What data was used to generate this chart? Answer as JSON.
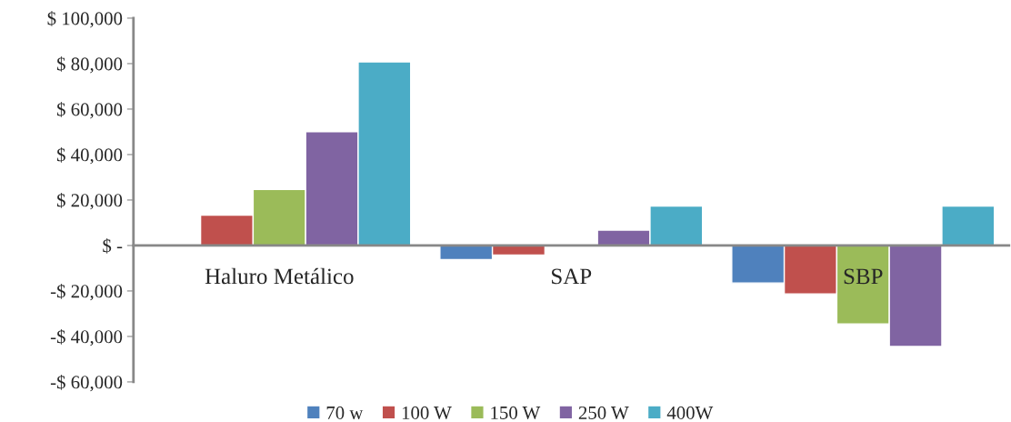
{
  "chart_data": {
    "type": "bar",
    "categories": [
      "Haluro Metálico",
      "SAP",
      "SBP"
    ],
    "series": [
      {
        "name": "70 w",
        "color": "#4f81bd",
        "values": [
          null,
          -6200,
          -16500
        ]
      },
      {
        "name": "100 W",
        "color": "#c0504d",
        "values": [
          13400,
          -4200,
          -21300
        ]
      },
      {
        "name": "150 W",
        "color": "#9bbb59",
        "values": [
          24700,
          null,
          -34500
        ]
      },
      {
        "name": "250 W",
        "color": "#8064a2",
        "values": [
          50100,
          6800,
          -44400
        ]
      },
      {
        "name": "400W",
        "color": "#4bacc6",
        "values": [
          80800,
          17400,
          17400
        ]
      }
    ],
    "ylim": [
      -60000,
      100000
    ],
    "yticks": [
      {
        "value": -60000,
        "label": "-$ 60,000"
      },
      {
        "value": -40000,
        "label": "-$ 40,000"
      },
      {
        "value": -20000,
        "label": "-$ 20,000"
      },
      {
        "value": 0,
        "label": "$ -"
      },
      {
        "value": 20000,
        "label": "$ 20,000"
      },
      {
        "value": 40000,
        "label": "$ 40,000"
      },
      {
        "value": 60000,
        "label": "$ 60,000"
      },
      {
        "value": 80000,
        "label": "$ 80,000"
      },
      {
        "value": 100000,
        "label": "$ 100,000"
      }
    ],
    "grid": false,
    "legend": "bottom"
  }
}
